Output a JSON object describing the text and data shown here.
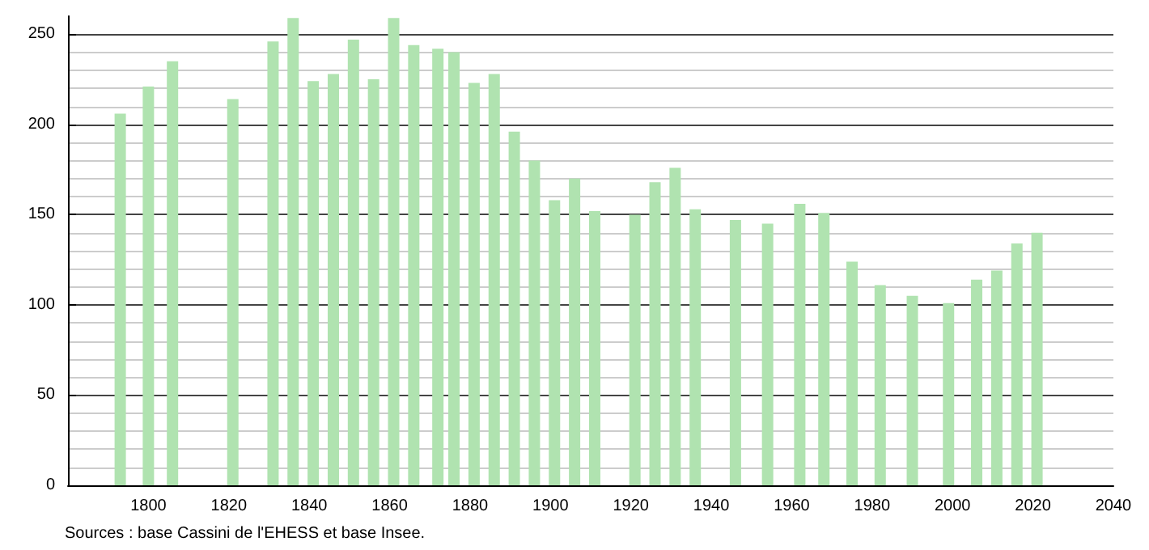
{
  "chart_data": {
    "type": "bar",
    "x": [
      1793,
      1800,
      1806,
      1821,
      1831,
      1836,
      1841,
      1846,
      1851,
      1856,
      1861,
      1866,
      1872,
      1876,
      1881,
      1886,
      1891,
      1896,
      1901,
      1906,
      1911,
      1921,
      1926,
      1931,
      1936,
      1946,
      1954,
      1962,
      1968,
      1975,
      1982,
      1990,
      1999,
      2006,
      2011,
      2016,
      2021
    ],
    "values": [
      206,
      221,
      235,
      214,
      246,
      259,
      224,
      228,
      247,
      225,
      259,
      244,
      242,
      240,
      223,
      228,
      196,
      180,
      158,
      170,
      152,
      150,
      168,
      176,
      153,
      147,
      145,
      156,
      151,
      124,
      111,
      105,
      101,
      114,
      119,
      134,
      140
    ],
    "color": "#b0e3b0",
    "xlim": [
      1780,
      2040
    ],
    "xticks": [
      1800,
      1820,
      1840,
      1860,
      1880,
      1900,
      1920,
      1940,
      1960,
      1980,
      2000,
      2020,
      2040
    ],
    "ylim": [
      0,
      260
    ],
    "yticks": [
      0,
      50,
      100,
      150,
      200,
      250
    ],
    "grid": "y",
    "annotations": [
      "Sources : base Cassini de l'EHESS et base Insee."
    ]
  }
}
